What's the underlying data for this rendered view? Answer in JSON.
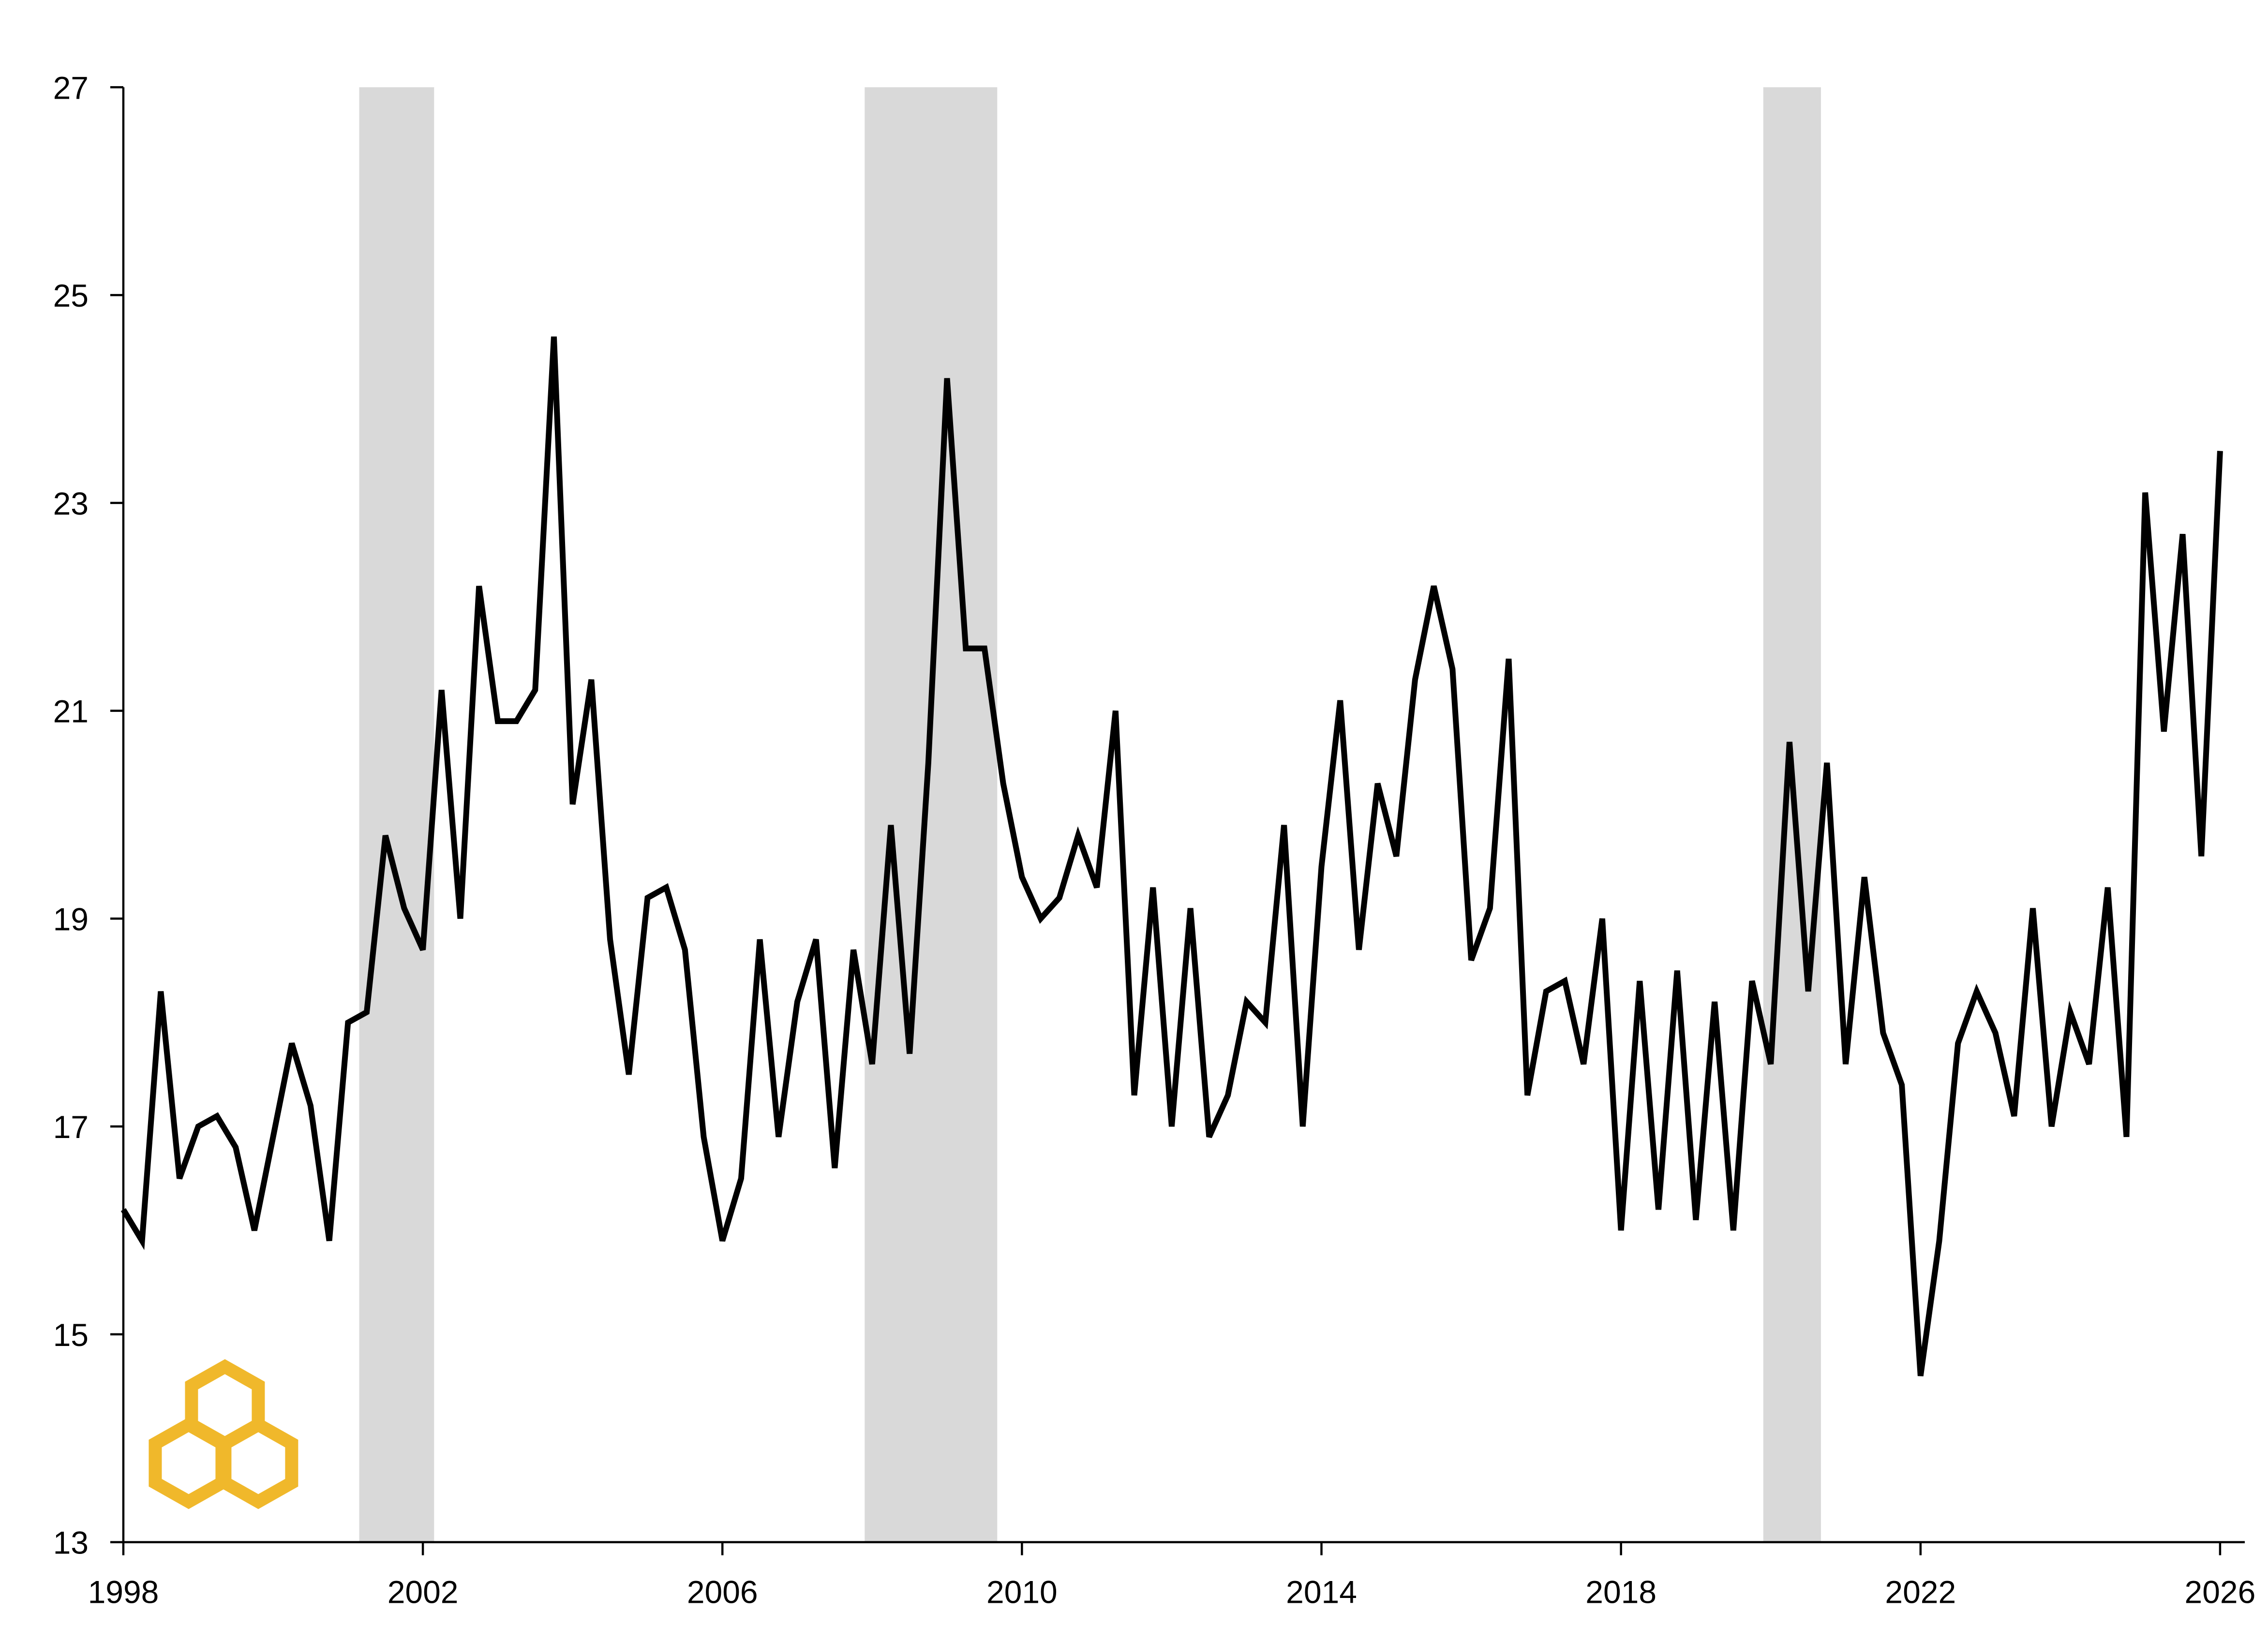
{
  "chart_data": {
    "type": "line",
    "x": [
      1998,
      1998.25,
      1998.5,
      1998.75,
      1999,
      1999.25,
      1999.5,
      1999.75,
      2000,
      2000.25,
      2000.5,
      2000.75,
      2001,
      2001.25,
      2001.5,
      2001.75,
      2002,
      2002.25,
      2002.5,
      2002.75,
      2003,
      2003.25,
      2003.5,
      2003.75,
      2004,
      2004.25,
      2004.5,
      2004.75,
      2005,
      2005.25,
      2005.5,
      2005.75,
      2006,
      2006.25,
      2006.5,
      2006.75,
      2007,
      2007.25,
      2007.5,
      2007.75,
      2008,
      2008.25,
      2008.5,
      2008.75,
      2009,
      2009.25,
      2009.5,
      2009.75,
      2010,
      2010.25,
      2010.5,
      2010.75,
      2011,
      2011.25,
      2011.5,
      2011.75,
      2012,
      2012.25,
      2012.5,
      2012.75,
      2013,
      2013.25,
      2013.5,
      2013.75,
      2014,
      2014.25,
      2014.5,
      2014.75,
      2015,
      2015.25,
      2015.5,
      2015.75,
      2016,
      2016.25,
      2016.5,
      2016.75,
      2017,
      2017.25,
      2017.5,
      2017.75,
      2018,
      2018.25,
      2018.5,
      2018.75,
      2019,
      2019.25,
      2019.5,
      2019.75,
      2020,
      2020.25,
      2020.5,
      2020.75,
      2021,
      2021.25,
      2021.5,
      2021.75,
      2022,
      2022.25,
      2022.5,
      2022.75,
      2023,
      2023.25,
      2023.5,
      2023.75,
      2024,
      2024.25,
      2024.5,
      2024.75,
      2025,
      2025.25,
      2025.5,
      2025.75,
      2026
    ],
    "series": [
      {
        "color": "#000000",
        "values": [
          16.2,
          15.9,
          18.3,
          16.5,
          17.0,
          17.1,
          16.8,
          16.0,
          16.9,
          17.8,
          17.2,
          15.9,
          18.0,
          18.1,
          19.8,
          19.1,
          18.7,
          21.2,
          19.0,
          22.2,
          20.9,
          20.9,
          21.2,
          24.6,
          20.1,
          21.3,
          18.8,
          17.5,
          19.2,
          19.3,
          18.7,
          16.9,
          15.9,
          16.5,
          18.8,
          16.9,
          18.2,
          18.8,
          16.6,
          18.7,
          17.6,
          19.9,
          17.7,
          20.5,
          24.2,
          21.6,
          21.6,
          20.3,
          19.4,
          19.0,
          19.2,
          19.8,
          19.3,
          21.0,
          17.3,
          19.3,
          17.0,
          19.1,
          16.9,
          17.3,
          18.2,
          18.0,
          19.9,
          17.0,
          19.5,
          21.1,
          18.7,
          20.3,
          19.6,
          21.3,
          22.2,
          21.4,
          18.6,
          19.1,
          21.5,
          17.3,
          18.3,
          18.4,
          17.6,
          19.0,
          16.0,
          18.4,
          16.2,
          18.5,
          16.1,
          18.2,
          16.0,
          18.4,
          17.6,
          20.7,
          18.3,
          20.5,
          17.6,
          19.4,
          17.9,
          17.4,
          14.6,
          15.9,
          17.8,
          18.3,
          17.9,
          17.1,
          19.1,
          17.0,
          18.1,
          17.6,
          19.3,
          16.9,
          23.1,
          20.8,
          22.7,
          19.6,
          23.5
        ]
      }
    ],
    "shaded_periods": [
      [
        2001.15,
        2002.15
      ],
      [
        2007.9,
        2009.67
      ],
      [
        2019.9,
        2020.67
      ]
    ],
    "shade_color": "#d9d9d9",
    "xlim": [
      1998,
      2026.33
    ],
    "xticks": [
      1998,
      2002,
      2006,
      2010,
      2014,
      2018,
      2022,
      2026
    ],
    "ylim": [
      13,
      27
    ],
    "yticks": [
      13,
      15,
      17,
      19,
      21,
      23,
      25,
      27
    ]
  }
}
